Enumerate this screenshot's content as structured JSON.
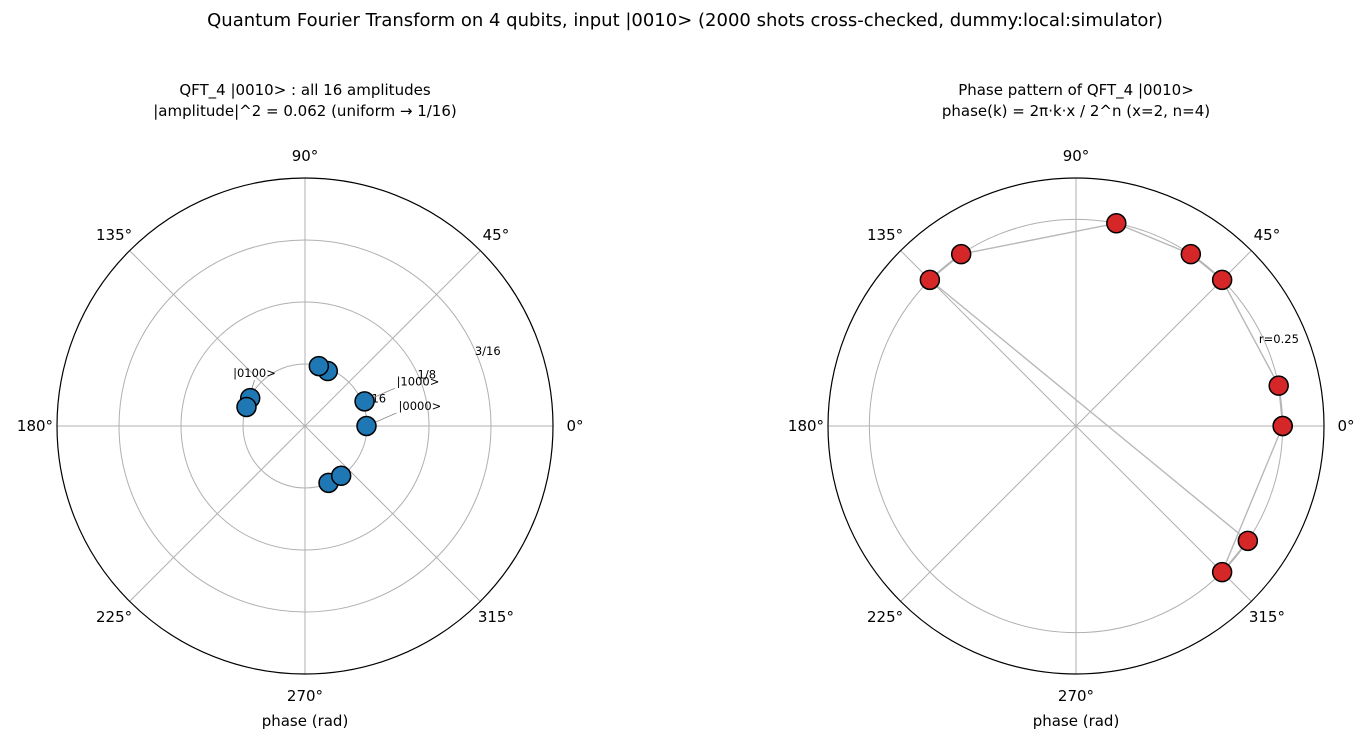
{
  "figure": {
    "suptitle": "Quantum Fourier Transform on 4 qubits, input |0010>  (2000 shots cross-checked, dummy:local:simulator)"
  },
  "chart_data": [
    {
      "type": "scatter",
      "projection": "polar",
      "title_line1": "QFT_4 |0010> : all 16 amplitudes",
      "title_line2": "|amplitude|^2 = 0.062 (uniform → 1/16)",
      "xlabel": "phase (rad)",
      "angle_ticks": [
        "0°",
        "45°",
        "90°",
        "135°",
        "180°",
        "225°",
        "270°",
        "315°"
      ],
      "rlim": [
        0,
        0.25
      ],
      "r_ticks": [
        {
          "value": 0.0625,
          "label": "1/16"
        },
        {
          "value": 0.125,
          "label": "1/8"
        },
        {
          "value": 0.1875,
          "label": "3/16"
        },
        {
          "value": 0.25,
          "label": ""
        }
      ],
      "grid": true,
      "marker_color": "#1f77b4",
      "points": [
        {
          "theta_deg": 0,
          "r": 0.062
        },
        {
          "theta_deg": 22.5,
          "r": 0.065
        },
        {
          "theta_deg": 67.5,
          "r": 0.06
        },
        {
          "theta_deg": 77.0,
          "r": 0.062
        },
        {
          "theta_deg": 153.0,
          "r": 0.062
        },
        {
          "theta_deg": 162.0,
          "r": 0.062
        },
        {
          "theta_deg": 292.5,
          "r": 0.062
        },
        {
          "theta_deg": 306.0,
          "r": 0.062
        }
      ],
      "annotations": [
        {
          "text": "|0000>",
          "theta_deg": 0
        },
        {
          "text": "|1000>",
          "theta_deg": 22.5
        },
        {
          "text": "|0100>",
          "theta_deg": 162.0
        }
      ]
    },
    {
      "type": "scatter",
      "projection": "polar",
      "title_line1": "Phase pattern of QFT_4 |0010>",
      "title_line2": "phase(k) = 2π·k·x / 2^n   (x=2, n=4)",
      "xlabel": "phase (rad)",
      "angle_ticks": [
        "0°",
        "45°",
        "90°",
        "135°",
        "180°",
        "225°",
        "270°",
        "315°"
      ],
      "rlim": [
        0,
        0.3
      ],
      "r_ticks": [
        {
          "value": 0.25,
          "label": "r=0.25"
        }
      ],
      "grid": true,
      "marker_color": "#d62728",
      "connect_points": true,
      "points": [
        {
          "theta_deg": 0,
          "r": 0.25
        },
        {
          "theta_deg": 11.25,
          "r": 0.25
        },
        {
          "theta_deg": 45,
          "r": 0.25
        },
        {
          "theta_deg": 56.25,
          "r": 0.25
        },
        {
          "theta_deg": 78.75,
          "r": 0.25
        },
        {
          "theta_deg": 123.75,
          "r": 0.25
        },
        {
          "theta_deg": 135,
          "r": 0.25
        },
        {
          "theta_deg": 326.25,
          "r": 0.25
        },
        {
          "theta_deg": 315,
          "r": 0.25
        },
        {
          "theta_deg": 0,
          "r": 0.25
        }
      ]
    }
  ]
}
